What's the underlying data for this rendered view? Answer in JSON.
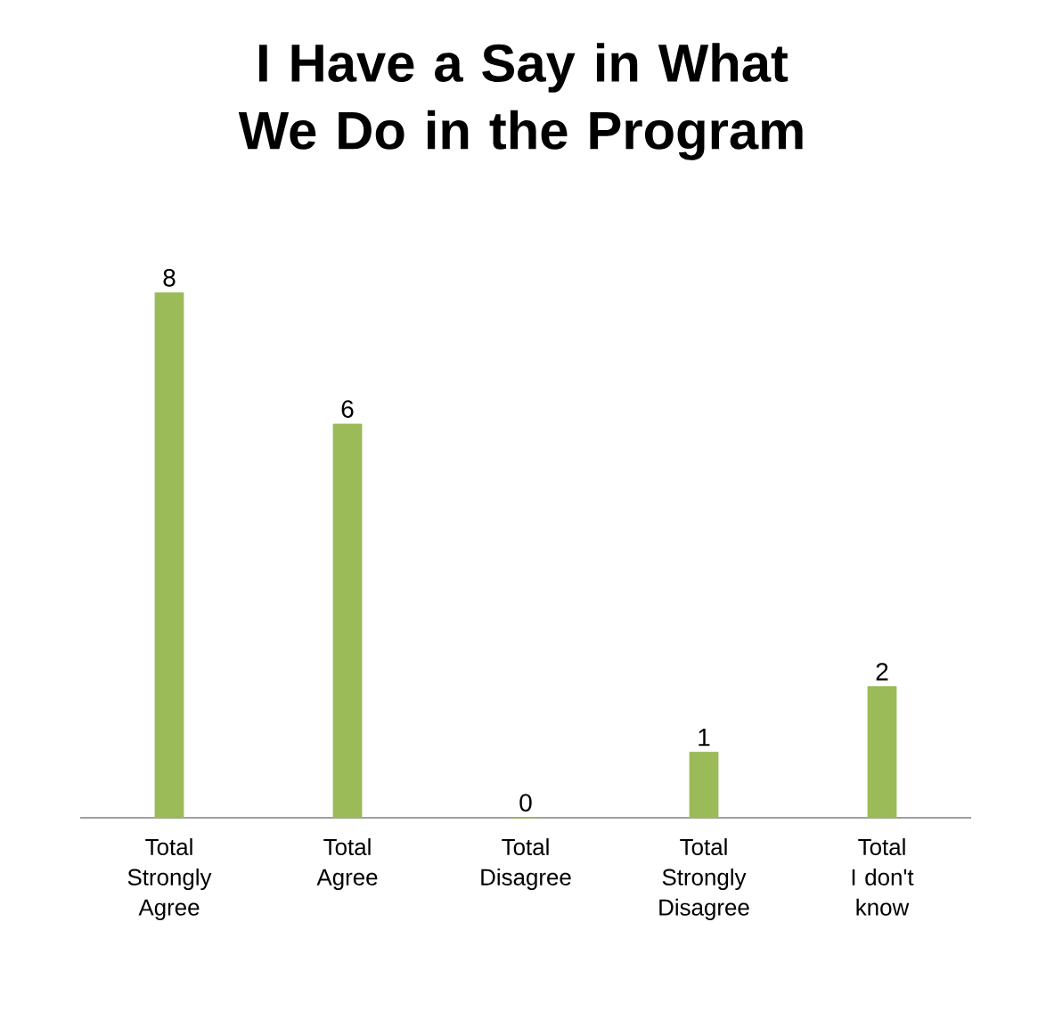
{
  "chart_data": {
    "type": "bar",
    "title": "I Have a Say in What We Do in the Program",
    "categories": [
      "Total Strongly Agree",
      "Total Agree",
      "Total Disagree",
      "Total Strongly Disagree",
      "Total I don't know"
    ],
    "values": [
      8,
      6,
      0,
      1,
      2
    ],
    "color": "#9bbb59",
    "data_labels": true
  }
}
